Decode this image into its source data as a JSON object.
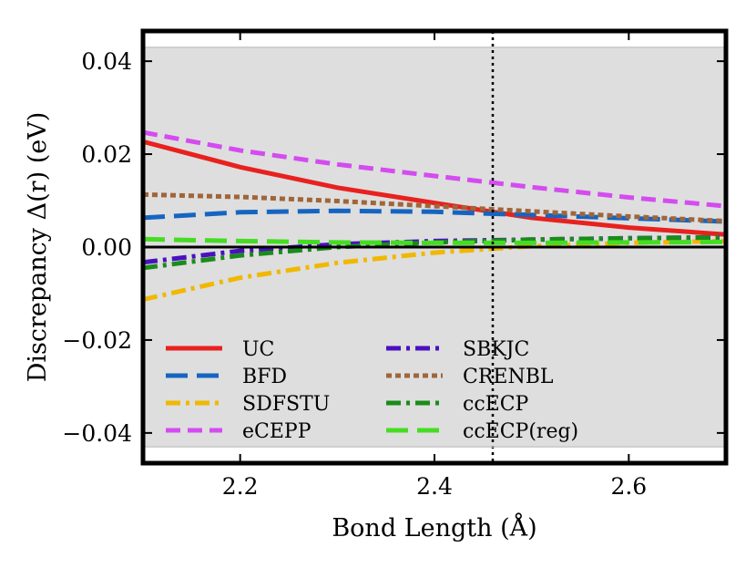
{
  "chart_data": {
    "type": "line",
    "xlabel": "Bond Length (Å)",
    "ylabel": "Discrepancy Δ(r) (eV)",
    "xlim": [
      2.1,
      2.7
    ],
    "ylim": [
      -0.0465,
      0.0465
    ],
    "xticks": [
      2.2,
      2.4,
      2.6
    ],
    "xtick_labels": [
      "2.2",
      "2.4",
      "2.6"
    ],
    "yticks": [
      -0.04,
      -0.02,
      0.0,
      0.02,
      0.04
    ],
    "ytick_labels": [
      "−0.04",
      "−0.02",
      "0.00",
      "0.02",
      "0.04"
    ],
    "shaded_band": [
      -0.043,
      0.043
    ],
    "reference_line_y": 0.0,
    "vertical_line_x": 2.46,
    "legend_position": "lower-left",
    "x": [
      2.1,
      2.2,
      2.3,
      2.4,
      2.5,
      2.6,
      2.7
    ],
    "series": [
      {
        "name": "UC",
        "color": "#e8211f",
        "style": "solid",
        "values": [
          0.0227,
          0.0172,
          0.0128,
          0.0095,
          0.0063,
          0.0042,
          0.0027
        ]
      },
      {
        "name": "BFD",
        "color": "#1565c0",
        "style": "longdash",
        "values": [
          0.0063,
          0.0075,
          0.0078,
          0.0076,
          0.0069,
          0.0062,
          0.0055
        ]
      },
      {
        "name": "SDFSTU",
        "color": "#f0b800",
        "style": "dashdot",
        "values": [
          -0.0113,
          -0.0066,
          -0.0034,
          -0.0012,
          0.0002,
          0.0009,
          0.0013
        ]
      },
      {
        "name": "eCEPP",
        "color": "#d44cf0",
        "style": "dash",
        "values": [
          0.0247,
          0.0208,
          0.0178,
          0.0153,
          0.0129,
          0.0107,
          0.0088
        ]
      },
      {
        "name": "SBKJC",
        "color": "#4a10c0",
        "style": "dashdot",
        "values": [
          -0.0033,
          -0.0008,
          0.0006,
          0.0013,
          0.0016,
          0.0019,
          0.0021
        ]
      },
      {
        "name": "CRENBL",
        "color": "#a0653a",
        "style": "dotted",
        "values": [
          0.0113,
          0.0108,
          0.0099,
          0.0088,
          0.0077,
          0.0066,
          0.0056
        ]
      },
      {
        "name": "ccECP",
        "color": "#1a8c1a",
        "style": "dashdot",
        "values": [
          -0.0045,
          -0.0018,
          0.0,
          0.001,
          0.0016,
          0.0019,
          0.0021
        ]
      },
      {
        "name": "ccECP(reg)",
        "color": "#44dd22",
        "style": "longdash",
        "values": [
          0.0017,
          0.0013,
          0.001,
          0.0009,
          0.0009,
          0.001,
          0.0011
        ]
      }
    ]
  }
}
